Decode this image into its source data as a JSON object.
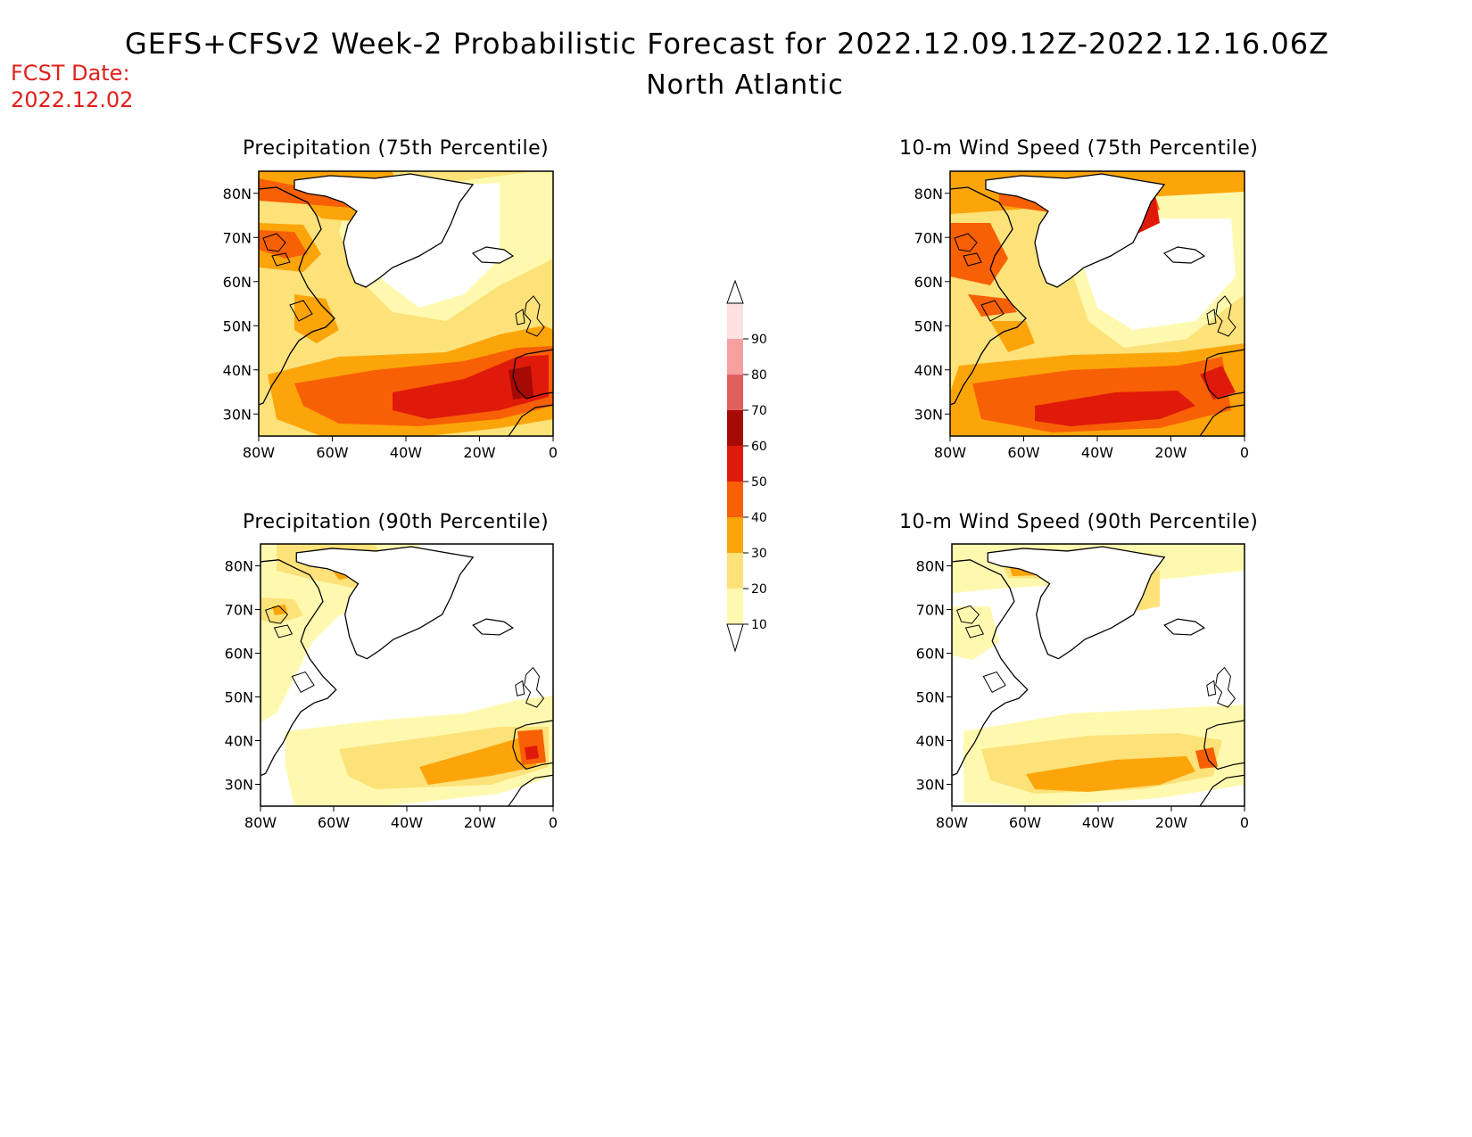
{
  "header": {
    "title": "GEFS+CFSv2 Week-2 Probabilistic Forecast for 2022.12.09.12Z-2022.12.16.06Z",
    "subtitle": "North Atlantic",
    "fcst_label": "FCST Date:",
    "fcst_date": "2022.12.02"
  },
  "panels": [
    {
      "id": "p75",
      "title": "Precipitation (75th Percentile)"
    },
    {
      "id": "w75",
      "title": "10-m Wind Speed (75th Percentile)"
    },
    {
      "id": "p90",
      "title": "Precipitation (90th Percentile)"
    },
    {
      "id": "w90",
      "title": "10-m Wind Speed (90th Percentile)"
    }
  ],
  "axes": {
    "lat_labels": [
      "80N",
      "70N",
      "60N",
      "50N",
      "40N",
      "30N"
    ],
    "lon_labels": [
      "80W",
      "60W",
      "40W",
      "20W",
      "0"
    ]
  },
  "colorbar": {
    "levels": [
      "10",
      "20",
      "30",
      "40",
      "50",
      "60",
      "70",
      "80",
      "90"
    ],
    "colors": [
      "#fff9b0",
      "#fde27a",
      "#fca50a",
      "#f86005",
      "#e01a0a",
      "#a50a05",
      "#e06060",
      "#f4a0a0",
      "#fde0e0"
    ]
  },
  "colors": {
    "c10": "#fff9b0",
    "c20": "#fde27a",
    "c30": "#fca50a",
    "c40": "#f86005",
    "c50": "#e01a0a",
    "c60": "#a50a05",
    "fcst": "#e0201b"
  }
}
